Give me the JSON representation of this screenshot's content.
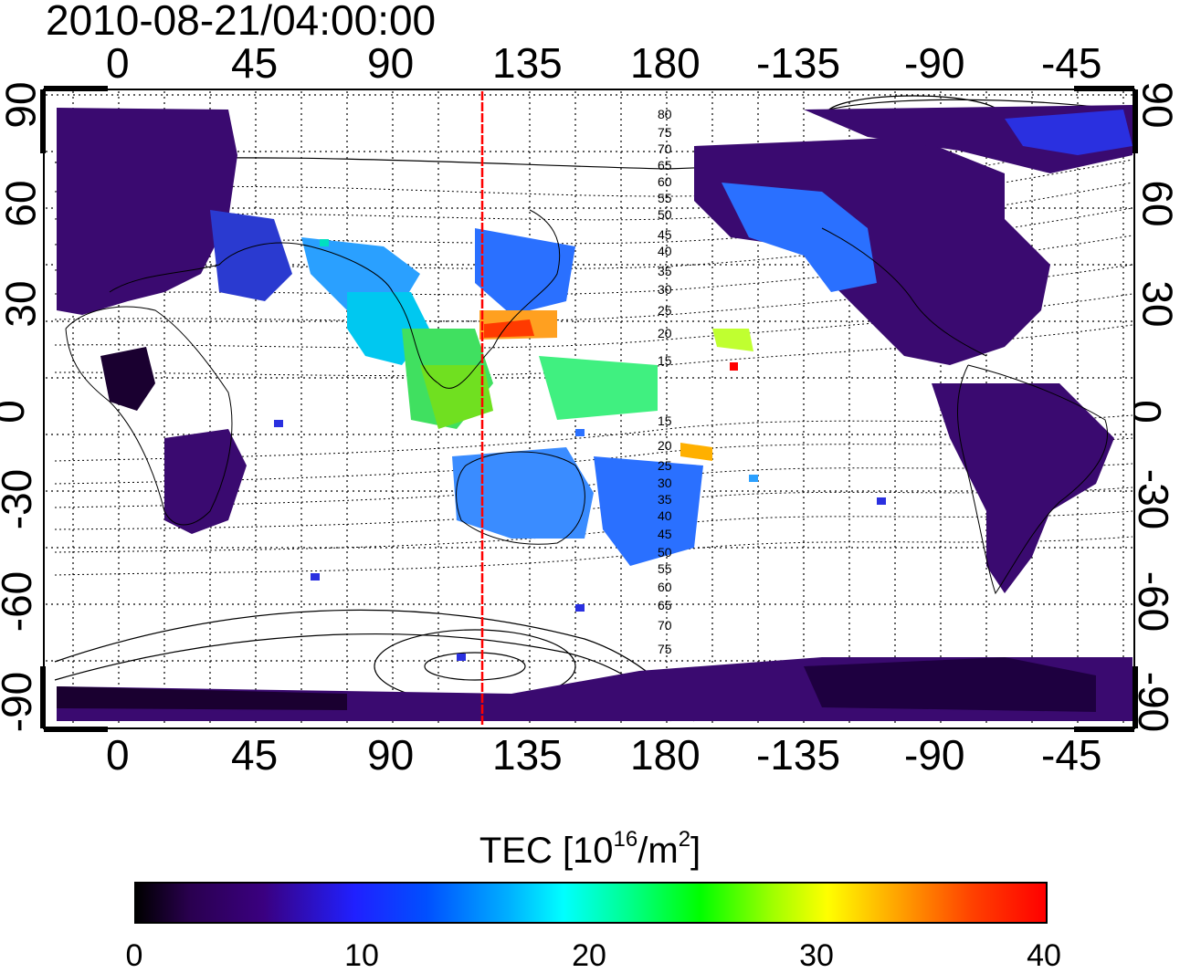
{
  "title": "2010-08-21/04:00:00",
  "lon_ticks": [
    "0",
    "45",
    "90",
    "135",
    "180",
    "-135",
    "-90",
    "-45"
  ],
  "lat_ticks": [
    "90",
    "60",
    "30",
    "0",
    "-30",
    "-60",
    "-90"
  ],
  "contour_labels_north": [
    "80",
    "75",
    "70",
    "65",
    "60",
    "55",
    "50",
    "45",
    "40",
    "35",
    "30",
    "25",
    "20",
    "15"
  ],
  "contour_labels_south": [
    "15",
    "20",
    "25",
    "30",
    "35",
    "40",
    "45",
    "50",
    "55",
    "60",
    "65",
    "70",
    "75"
  ],
  "colorbar": {
    "label_main": "TEC  [10",
    "label_sup1": "16",
    "label_mid": "/m",
    "label_sup2": "2",
    "label_end": "]",
    "ticks": [
      "0",
      "10",
      "20",
      "30",
      "40"
    ],
    "range": [
      0,
      40
    ]
  },
  "marker_longitude": 120,
  "colors": {
    "marker": "#ff0000"
  }
}
